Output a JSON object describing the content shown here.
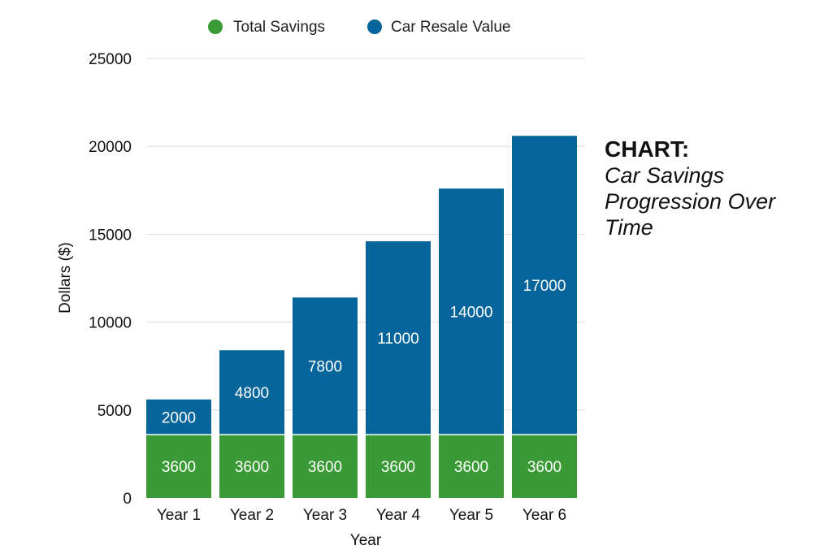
{
  "side_title": {
    "heading": "CHART:",
    "subtitle": "Car Savings Progression Over Time"
  },
  "chart_data": {
    "type": "bar",
    "stacked": true,
    "categories": [
      "Year 1",
      "Year 2",
      "Year 3",
      "Year 4",
      "Year 5",
      "Year 6"
    ],
    "series": [
      {
        "name": "Total Savings",
        "color": "#3a9a35",
        "values": [
          3600,
          3600,
          3600,
          3600,
          3600,
          3600
        ]
      },
      {
        "name": "Car Resale Value",
        "color": "#06659a",
        "values": [
          2000,
          4800,
          7800,
          11000,
          14000,
          17000
        ]
      }
    ],
    "xlabel": "Year",
    "ylabel": "Dollars ($)",
    "ylim": [
      0,
      25000
    ],
    "yticks": [
      0,
      5000,
      10000,
      15000,
      20000,
      25000
    ],
    "grid": true,
    "legend_position": "top-center"
  }
}
